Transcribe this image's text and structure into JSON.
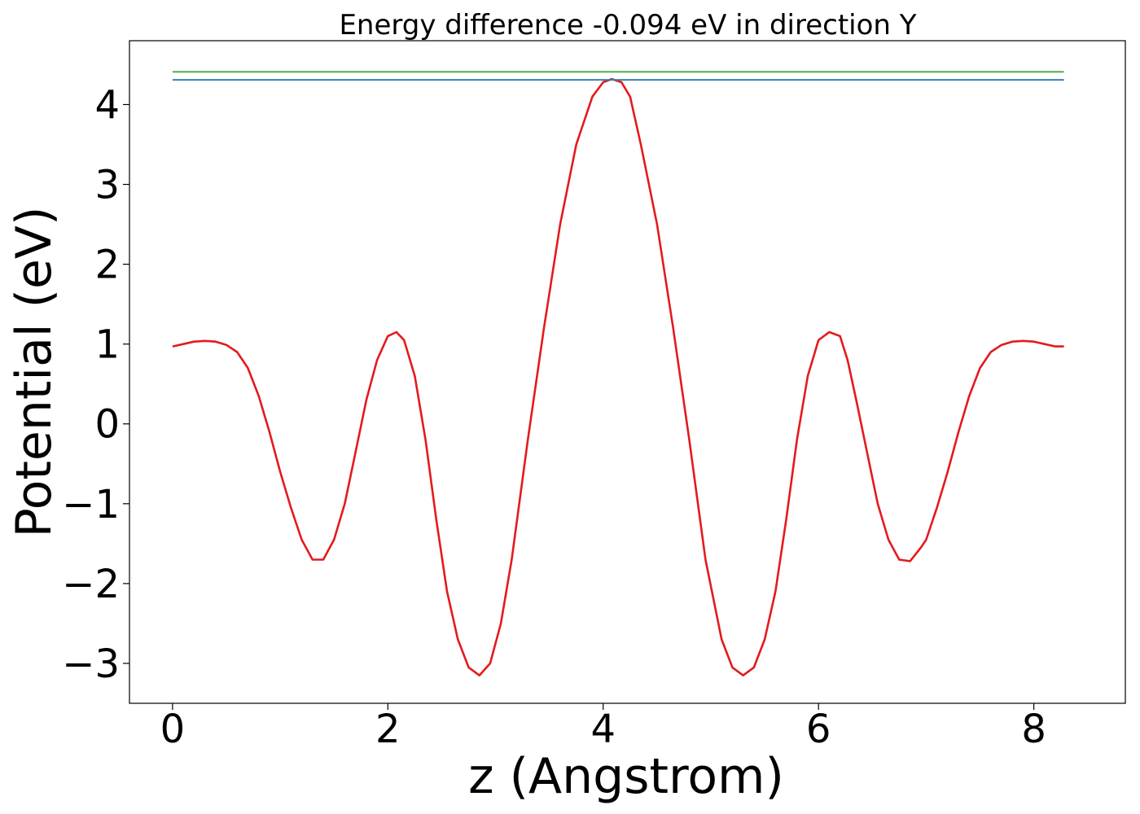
{
  "chart_data": {
    "type": "line",
    "title": "Energy difference -0.094 eV in direction Y",
    "xlabel": "z (Angstrom)",
    "ylabel": "Potential (eV)",
    "xlim": [
      -0.4,
      8.85
    ],
    "ylim": [
      -3.5,
      4.8
    ],
    "x_ticks": [
      0,
      2,
      4,
      6,
      8
    ],
    "x_tick_labels": [
      "0",
      "2",
      "4",
      "6",
      "8"
    ],
    "y_ticks": [
      -3,
      -2,
      -1,
      0,
      1,
      2,
      3,
      4
    ],
    "y_tick_labels": [
      "−3",
      "−2",
      "−1",
      "0",
      "1",
      "2",
      "3",
      "4"
    ],
    "grid": false,
    "legend": "none",
    "series": [
      {
        "color": "#e41a1c",
        "x": [
          0.0,
          0.1,
          0.2,
          0.3,
          0.4,
          0.5,
          0.6,
          0.7,
          0.8,
          0.9,
          1.0,
          1.1,
          1.2,
          1.3,
          1.4,
          1.5,
          1.6,
          1.7,
          1.8,
          1.9,
          2.0,
          2.08,
          2.15,
          2.25,
          2.35,
          2.45,
          2.55,
          2.65,
          2.75,
          2.85,
          2.95,
          3.05,
          3.15,
          3.3,
          3.45,
          3.6,
          3.75,
          3.9,
          4.0,
          4.08,
          4.17,
          4.25,
          4.35,
          4.5,
          4.65,
          4.8,
          4.95,
          5.1,
          5.2,
          5.3,
          5.4,
          5.5,
          5.6,
          5.7,
          5.8,
          5.9,
          6.0,
          6.1,
          6.2,
          6.27,
          6.35,
          6.45,
          6.55,
          6.65,
          6.75,
          6.85,
          6.95,
          7.0,
          7.1,
          7.2,
          7.3,
          7.4,
          7.5,
          7.6,
          7.7,
          7.8,
          7.9,
          8.0,
          8.1,
          8.2,
          8.28
        ],
        "y": [
          0.97,
          1.0,
          1.03,
          1.04,
          1.03,
          0.99,
          0.9,
          0.7,
          0.35,
          -0.1,
          -0.6,
          -1.05,
          -1.45,
          -1.7,
          -1.7,
          -1.45,
          -1.0,
          -0.35,
          0.3,
          0.8,
          1.1,
          1.15,
          1.05,
          0.6,
          -0.2,
          -1.2,
          -2.1,
          -2.7,
          -3.05,
          -3.15,
          -3.0,
          -2.5,
          -1.7,
          -0.2,
          1.2,
          2.5,
          3.5,
          4.1,
          4.28,
          4.32,
          4.28,
          4.1,
          3.5,
          2.5,
          1.2,
          -0.2,
          -1.7,
          -2.7,
          -3.05,
          -3.15,
          -3.05,
          -2.7,
          -2.1,
          -1.2,
          -0.2,
          0.6,
          1.05,
          1.15,
          1.1,
          0.8,
          0.3,
          -0.35,
          -1.0,
          -1.45,
          -1.7,
          -1.72,
          -1.55,
          -1.45,
          -1.05,
          -0.6,
          -0.1,
          0.35,
          0.7,
          0.9,
          0.99,
          1.03,
          1.04,
          1.03,
          1.0,
          0.97,
          0.97
        ]
      },
      {
        "color": "#4daf4a",
        "x": [
          0.0,
          8.28
        ],
        "y": [
          4.41,
          4.41
        ]
      },
      {
        "color": "#377eb8",
        "x": [
          0.0,
          8.28
        ],
        "y": [
          4.31,
          4.31
        ]
      }
    ]
  }
}
